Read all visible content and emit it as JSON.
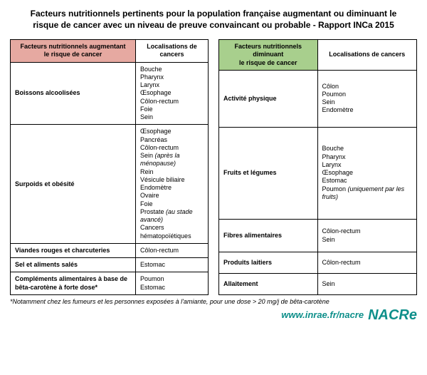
{
  "title": "Facteurs nutritionnels pertinents pour la population française augmentant ou diminuant le risque de cancer avec un niveau de preuve convaincant ou probable - Rapport INCa 2015",
  "colors": {
    "inc_header_bg": "#e6a9a1",
    "dec_header_bg": "#a8cf8d",
    "border": "#000000",
    "background": "#ffffff",
    "link": "#0d8f8a"
  },
  "left": {
    "header_factor": "Facteurs nutritionnels augmentant\nle risque de cancer",
    "header_loc": "Localisations de cancers",
    "rows": [
      {
        "factor": "Boissons alcoolisées",
        "locs": [
          "Bouche",
          "Pharynx",
          "Larynx",
          "Œsophage",
          "Côlon-rectum",
          "Foie",
          "Sein"
        ]
      },
      {
        "factor": "Surpoids et obésité",
        "locs": [
          "Œsophage",
          "Pancréas",
          "Côlon-rectum",
          "Sein (après la ménopause)",
          "Rein",
          "Vésicule biliaire",
          "Endomètre",
          "Ovaire",
          "Foie",
          "Prostate (au stade avancé)",
          "Cancers hématopoïétiques"
        ]
      },
      {
        "factor": "Viandes rouges et charcuteries",
        "locs": [
          "Côlon-rectum"
        ]
      },
      {
        "factor": "Sel et aliments salés",
        "locs": [
          "Estomac"
        ]
      },
      {
        "factor": "Compléments alimentaires à base de bêta-carotène à forte dose*",
        "locs": [
          "Poumon",
          "Estomac"
        ]
      }
    ]
  },
  "right": {
    "header_factor": "Facteurs nutritionnels diminuant\nle risque de cancer",
    "header_loc": "Localisations de cancers",
    "rows": [
      {
        "factor": "Activité physique",
        "locs": [
          "Côlon",
          "Poumon",
          "Sein",
          "Endomètre"
        ]
      },
      {
        "factor": "Fruits et légumes",
        "locs": [
          "Bouche",
          "Pharynx",
          "Larynx",
          "Œsophage",
          "Estomac",
          "Poumon (uniquement par les fruits)"
        ]
      },
      {
        "factor": "Fibres alimentaires",
        "locs": [
          "Côlon-rectum",
          "Sein"
        ]
      },
      {
        "factor": "Produits laitiers",
        "locs": [
          "Côlon-rectum"
        ]
      },
      {
        "factor": "Allaitement",
        "locs": [
          "Sein"
        ]
      }
    ]
  },
  "footnote": "*Notamment chez les fumeurs et les personnes exposées à l'amiante, pour une dose > 20 mg/j de bêta-carotène",
  "site": "www.inrae.fr/nacre",
  "logo": "NACRe"
}
